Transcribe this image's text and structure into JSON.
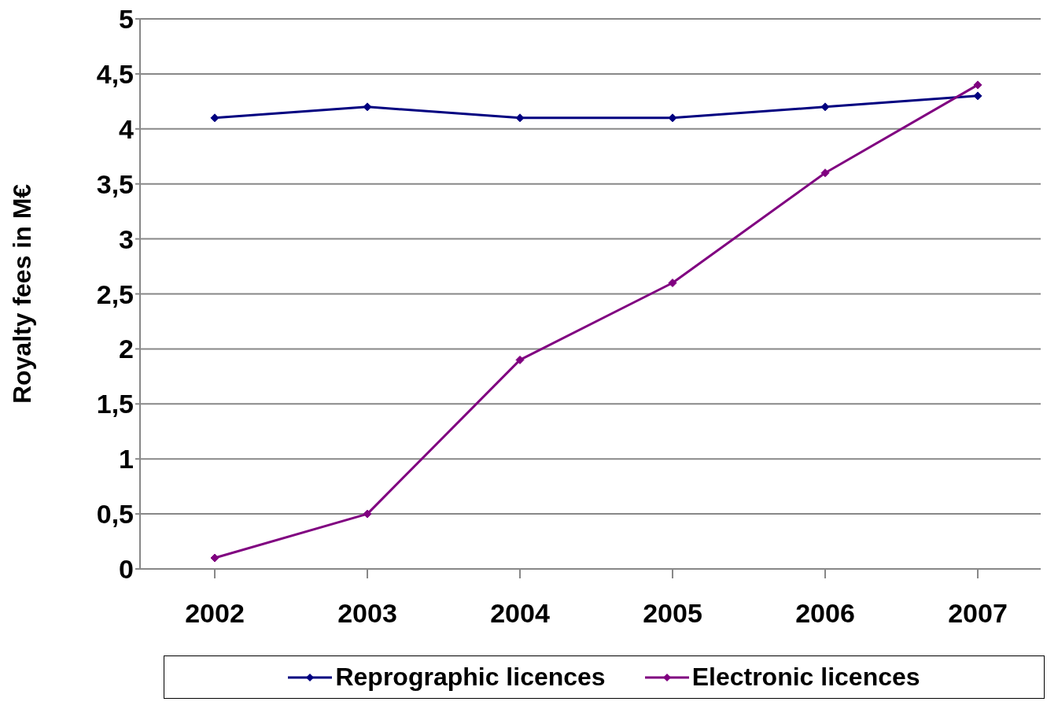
{
  "chart_data": {
    "type": "line",
    "ylabel": "Royalty fees in M€",
    "categories": [
      "2002",
      "2003",
      "2004",
      "2005",
      "2006",
      "2007"
    ],
    "series": [
      {
        "name": "Reprographic licences",
        "color": "#000080",
        "values": [
          4.1,
          4.2,
          4.1,
          4.1,
          4.2,
          4.3
        ]
      },
      {
        "name": "Electronic licences",
        "color": "#800080",
        "values": [
          0.1,
          0.5,
          1.9,
          2.6,
          3.6,
          4.4
        ]
      }
    ],
    "ylim": [
      0,
      5
    ],
    "yticks": [
      0,
      {
        "value": 0.5,
        "label": "0,5"
      },
      1,
      {
        "value": 1.5,
        "label": "1,5"
      },
      2,
      {
        "value": 2.5,
        "label": "2,5"
      },
      3,
      {
        "value": 3.5,
        "label": "3,5"
      },
      4,
      {
        "value": 4.5,
        "label": "4,5"
      },
      5
    ],
    "grid": "y",
    "legend": "bottom",
    "marker": "diamond",
    "line_style": "solid"
  }
}
